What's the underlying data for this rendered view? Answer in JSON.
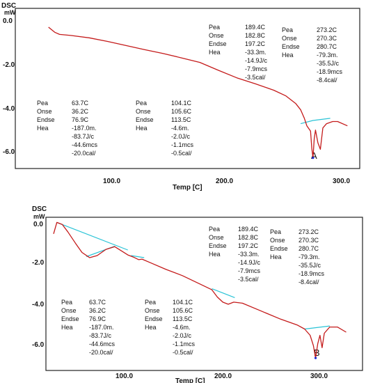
{
  "chart_data": [
    {
      "type": "line",
      "ylabel": "DSC",
      "yunit": "mW",
      "xlabel": "Temp [C]",
      "panel_label": "A",
      "xlim": [
        30,
        310
      ],
      "ylim": [
        -7.3,
        0.2
      ],
      "x_ticks": [
        "100.0",
        "200.0",
        "300.0"
      ],
      "y_ticks": [
        "0.0",
        "-2.0",
        "-4.0",
        "-6.0"
      ],
      "series": [
        {
          "values": [
            [
              57,
              -0.68
            ],
            [
              62,
              -0.92
            ],
            [
              66,
              -1.02
            ],
            [
              75,
              -1.07
            ],
            [
              90,
              -1.18
            ],
            [
              105,
              -1.35
            ],
            [
              120,
              -1.54
            ],
            [
              135,
              -1.73
            ],
            [
              150,
              -1.91
            ],
            [
              165,
              -2.12
            ],
            [
              180,
              -2.33
            ],
            [
              195,
              -2.7
            ],
            [
              210,
              -3.05
            ],
            [
              225,
              -3.33
            ],
            [
              240,
              -3.63
            ],
            [
              250,
              -3.9
            ],
            [
              258,
              -4.26
            ],
            [
              262,
              -4.55
            ],
            [
              265,
              -4.95
            ],
            [
              267,
              -5.3
            ],
            [
              270,
              -5.55
            ],
            [
              271,
              -6.35
            ],
            [
              272,
              -6.8
            ],
            [
              273,
              -5.9
            ],
            [
              274,
              -5.5
            ],
            [
              276,
              -6.1
            ],
            [
              278,
              -6.4
            ],
            [
              280,
              -5.4
            ],
            [
              283,
              -5.2
            ],
            [
              288,
              -5.1
            ],
            [
              292,
              -5.1
            ],
            [
              300,
              -5.3
            ]
          ]
        }
      ],
      "baselines": [
        {
          "values": [
            [
              262,
              -5.2
            ],
            [
              272,
              -5.05
            ],
            [
              286,
              -4.95
            ]
          ]
        }
      ],
      "annotations": [
        {
          "lines": [
            "Pea",
            "Onse",
            "Endse",
            "Hea"
          ],
          "values": [
            "63.7C",
            "36.2C",
            "76.9C",
            "-187.0m.",
            "-83.7J/c",
            "-44.6mcs",
            "-20.0cal/"
          ]
        },
        {
          "lines": [
            "Pea",
            "Onse",
            "Endse",
            "Hea"
          ],
          "values": [
            "104.1C",
            "105.6C",
            "113.5C",
            "-4.6m.",
            "-2.0J/c",
            "-1.1mcs",
            "-0.5cal/"
          ]
        },
        {
          "lines": [
            "Pea",
            "Onse",
            "Endse",
            "Hea"
          ],
          "values": [
            "189.4C",
            "182.8C",
            "197.2C",
            "-33.3m.",
            "-14.9J/c",
            "-7.9mcs",
            "-3.5cal/"
          ]
        },
        {
          "lines": [
            "Pea",
            "Onse",
            "Endse",
            "Hea"
          ],
          "values": [
            "273.2C",
            "270.3C",
            "280.7C",
            "-79.3m.",
            "-35.5J/c",
            "-18.9mcs",
            "-8.4cal/"
          ]
        }
      ]
    },
    {
      "type": "line",
      "ylabel": "DSC",
      "yunit": "mW",
      "xlabel": "Temp [C]",
      "panel_label": "B",
      "xlim": [
        25,
        315
      ],
      "ylim": [
        -7.2,
        0.2
      ],
      "x_ticks": [
        "100.0",
        "200.0",
        "300.0"
      ],
      "y_ticks": [
        "0.0",
        "-2.0",
        "-4.0",
        "-6.0"
      ],
      "series": [
        {
          "values": [
            [
              32,
              -0.6
            ],
            [
              35,
              -0.05
            ],
            [
              40,
              -0.15
            ],
            [
              45,
              -0.5
            ],
            [
              52,
              -1.05
            ],
            [
              58,
              -1.5
            ],
            [
              65,
              -1.75
            ],
            [
              72,
              -1.65
            ],
            [
              80,
              -1.35
            ],
            [
              88,
              -1.22
            ],
            [
              95,
              -1.45
            ],
            [
              100,
              -1.62
            ],
            [
              105,
              -1.72
            ],
            [
              110,
              -1.85
            ],
            [
              113,
              -1.82
            ],
            [
              120,
              -1.98
            ],
            [
              135,
              -2.32
            ],
            [
              150,
              -2.62
            ],
            [
              165,
              -3.0
            ],
            [
              177,
              -3.3
            ],
            [
              182,
              -3.65
            ],
            [
              187,
              -3.9
            ],
            [
              192,
              -4.0
            ],
            [
              197,
              -3.9
            ],
            [
              205,
              -3.95
            ],
            [
              220,
              -4.28
            ],
            [
              240,
              -4.72
            ],
            [
              255,
              -5.0
            ],
            [
              262,
              -5.2
            ],
            [
              267,
              -5.5
            ],
            [
              270,
              -6.0
            ],
            [
              272,
              -6.6
            ],
            [
              274,
              -5.9
            ],
            [
              276,
              -5.5
            ],
            [
              278,
              -6.1
            ],
            [
              280,
              -5.4
            ],
            [
              285,
              -5.1
            ],
            [
              292,
              -5.1
            ],
            [
              300,
              -5.35
            ]
          ]
        }
      ],
      "baselines": [
        {
          "values": [
            [
              35,
              -0.05
            ],
            [
              100,
              -1.38
            ]
          ]
        },
        {
          "values": [
            [
              62,
              -1.7
            ],
            [
              88,
              -1.2
            ]
          ]
        },
        {
          "values": [
            [
              103,
              -1.65
            ],
            [
              115,
              -1.75
            ]
          ]
        },
        {
          "values": [
            [
              177,
              -3.25
            ],
            [
              198,
              -3.68
            ]
          ]
        },
        {
          "values": [
            [
              262,
              -5.2
            ],
            [
              285,
              -5.05
            ]
          ]
        }
      ],
      "annotations": [
        {
          "lines": [
            "Pea",
            "Onse",
            "Endse",
            "Hea"
          ],
          "values": [
            "63.7C",
            "36.2C",
            "76.9C",
            "-187.0m.",
            "-83.7J/c",
            "-44.6mcs",
            "-20.0cal/"
          ]
        },
        {
          "lines": [
            "Pea",
            "Onse",
            "Endse",
            "Hea"
          ],
          "values": [
            "104.1C",
            "105.6C",
            "113.5C",
            "-4.6m.",
            "-2.0J/c",
            "-1.1mcs",
            "-0.5cal/"
          ]
        },
        {
          "lines": [
            "Pea",
            "Onse",
            "Endse",
            "Hea"
          ],
          "values": [
            "189.4C",
            "182.8C",
            "197.2C",
            "-33.3m.",
            "-14.9J/c",
            "-7.9mcs",
            "-3.5cal/"
          ]
        },
        {
          "lines": [
            "Pea",
            "Onse",
            "Endse",
            "Hea"
          ],
          "values": [
            "273.2C",
            "270.3C",
            "280.7C",
            "-79.3m.",
            "-35.5J/c",
            "-18.9mcs",
            "-8.4cal/"
          ]
        }
      ]
    }
  ],
  "colors": {
    "curve": "#c41a1a",
    "baseline": "#29c3d6",
    "marker": "#1a2bd6",
    "frame": "#222222"
  }
}
